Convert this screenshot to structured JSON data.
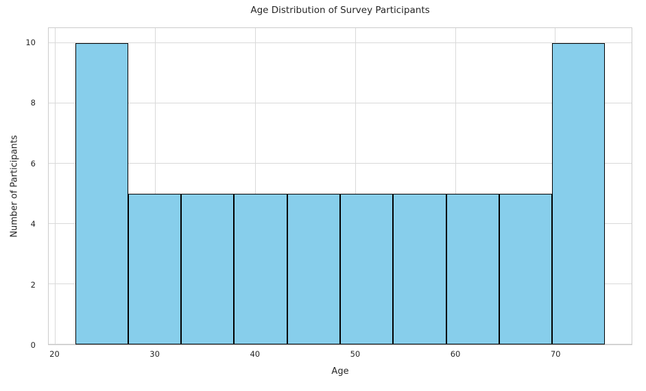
{
  "chart_data": {
    "type": "bar",
    "subtype": "histogram",
    "title": "Age Distribution of Survey Participants",
    "xlabel": "Age",
    "ylabel": "Number of Participants",
    "bin_edges": [
      22.0,
      27.3,
      32.6,
      37.9,
      43.2,
      48.5,
      53.8,
      59.1,
      64.4,
      69.7,
      75.0
    ],
    "counts": [
      10,
      5,
      5,
      5,
      5,
      5,
      5,
      5,
      5,
      10
    ],
    "xticks": [
      20,
      30,
      40,
      50,
      60,
      70
    ],
    "yticks": [
      0,
      2,
      4,
      6,
      8,
      10
    ],
    "xlim": [
      19.35,
      77.65
    ],
    "ylim": [
      0,
      10.5
    ],
    "grid": true,
    "legend": "none",
    "bar_color": "#87CEEB",
    "bar_edge_color": "#000000",
    "grid_color": "#d9d9d9",
    "spine_color": "#cccccc",
    "text_color": "#262626"
  }
}
